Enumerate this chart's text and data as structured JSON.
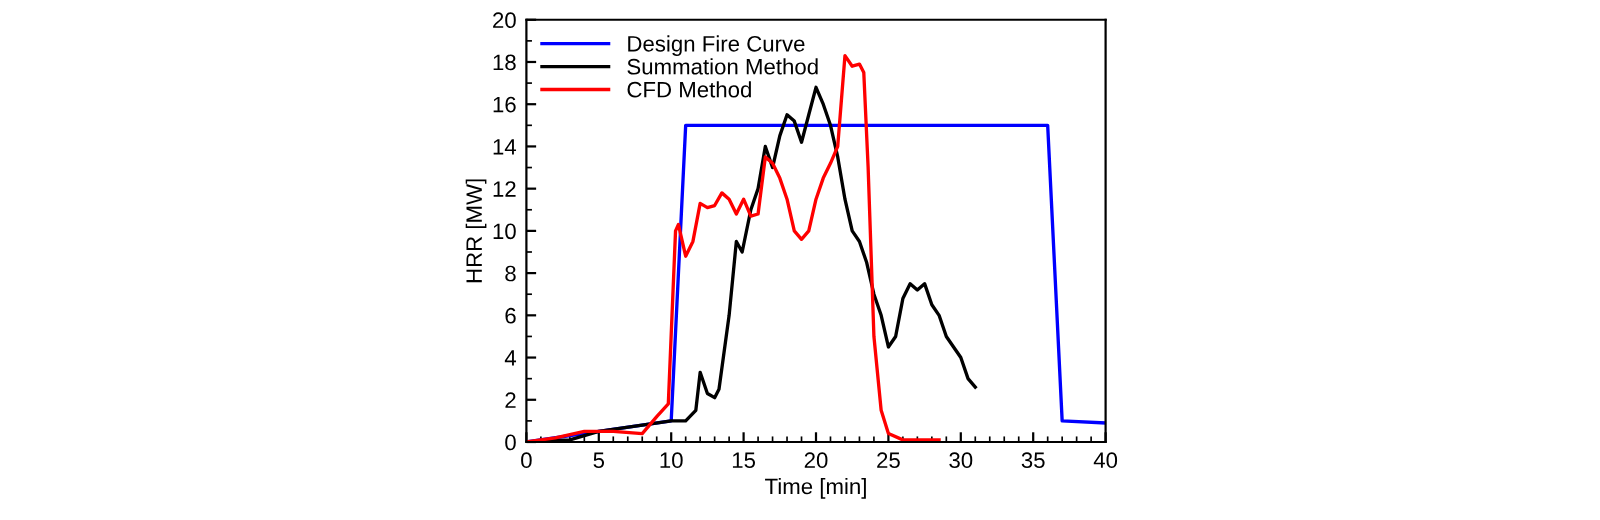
{
  "chart_data": {
    "type": "line",
    "xlabel": "Time [min]",
    "ylabel": "HRR [MW]",
    "xlim": [
      0,
      40
    ],
    "ylim": [
      0,
      20
    ],
    "xticks": [
      0,
      5,
      10,
      15,
      20,
      25,
      30,
      35,
      40
    ],
    "yticks": [
      0,
      2,
      4,
      6,
      8,
      10,
      12,
      14,
      16,
      18,
      20
    ],
    "legend": "top left",
    "grid": false,
    "marker": "none",
    "line_style": "solid",
    "series": [
      {
        "name": "Design Fire Curve",
        "color": "#0000ff",
        "x": [
          0,
          10,
          11,
          36,
          37,
          40
        ],
        "values": [
          0,
          1,
          15,
          15,
          1,
          0.9
        ]
      },
      {
        "name": "Summation Method",
        "color": "#000000",
        "x": [
          0,
          3,
          5,
          8,
          10,
          11,
          11.7,
          12,
          12.5,
          13,
          13.3,
          14,
          14.5,
          14.9,
          15.5,
          16,
          16.5,
          17,
          17.5,
          18,
          18.5,
          19,
          19.5,
          20,
          20.5,
          21,
          21.5,
          22,
          22.5,
          23,
          23.5,
          24,
          24.5,
          25,
          25.5,
          26,
          26.5,
          27,
          27.5,
          28,
          28.5,
          29,
          29.5,
          30,
          30.5,
          31
        ],
        "values": [
          0,
          0.1,
          0.5,
          0.8,
          1,
          1,
          1.5,
          3.3,
          2.3,
          2.1,
          2.5,
          6,
          9.5,
          9,
          11,
          12,
          14,
          13,
          14.5,
          15.5,
          15.2,
          14.2,
          15.5,
          16.8,
          16,
          15,
          13.5,
          11.5,
          10,
          9.5,
          8.5,
          7,
          6,
          4.5,
          5,
          6.8,
          7.5,
          7.2,
          7.5,
          6.5,
          6,
          5,
          4.5,
          4,
          3,
          2.6
        ]
      },
      {
        "name": "CFD Method",
        "color": "#ff0000",
        "x": [
          0,
          2,
          4,
          6,
          8,
          9,
          9.8,
          10.3,
          10.5,
          11,
          11.5,
          12,
          12.5,
          13,
          13.5,
          14,
          14.5,
          15,
          15.5,
          16,
          16.5,
          17,
          17.5,
          18,
          18.5,
          19,
          19.5,
          20,
          20.5,
          21,
          21.5,
          22,
          22.5,
          23,
          23.3,
          23.6,
          24,
          24.5,
          25,
          26,
          28.5
        ],
        "values": [
          0,
          0.2,
          0.5,
          0.5,
          0.4,
          1.2,
          1.8,
          10,
          10.3,
          8.8,
          9.5,
          11.3,
          11.1,
          11.2,
          11.8,
          11.5,
          10.8,
          11.5,
          10.7,
          10.8,
          13.5,
          13.2,
          12.5,
          11.5,
          10,
          9.6,
          10,
          11.5,
          12.5,
          13.2,
          14,
          18.3,
          17.8,
          17.9,
          17.5,
          13,
          5,
          1.5,
          0.4,
          0.1,
          0.1
        ]
      }
    ]
  }
}
